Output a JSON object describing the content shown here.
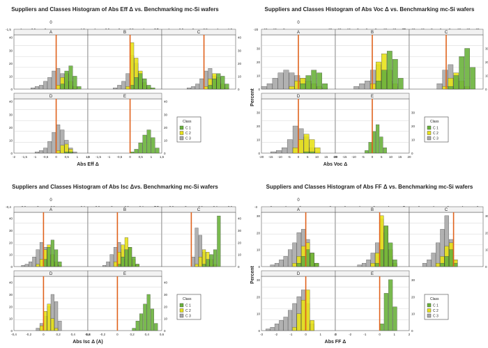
{
  "colors": {
    "c1": "#6ab23c",
    "c2": "#e8e21a",
    "c3": "#a8a8a8",
    "benchmark": "#e0621c",
    "grid": "#c8c8c8",
    "axis": "#555555"
  },
  "icons": {
    "legend_swatch": "square-swatch"
  },
  "chart_data": [
    {
      "type": "bar",
      "title": "Suppliers and Classes Histogram of Abs Eff Δ vs. Benchmarking mc-Si wafers",
      "xlabel": "Abs Eff Δ",
      "ylabel": "",
      "top_strip_label": "0",
      "xlim": [
        -2,
        1.5
      ],
      "ylim": [
        0,
        42
      ],
      "benchmark_x": 0,
      "grid": true,
      "legend": {
        "title": "Class",
        "entries": [
          "C 1",
          "C 2",
          "C 3"
        ],
        "position": "right"
      },
      "x_ticks_top": [
        "-1,5",
        "-1",
        "-0,5",
        "0",
        "0,5",
        "1",
        "1,5"
      ],
      "x_ticks_bottom": [
        "-2",
        "-1,5",
        "-1",
        "-0,5",
        "0",
        "0,5",
        "1",
        "1,5"
      ],
      "y_ticks": [
        "0",
        "10",
        "20",
        "30",
        "40"
      ],
      "panels": [
        {
          "label": "A",
          "bins": [
            -1.2,
            -1.0,
            -0.8,
            -0.6,
            -0.4,
            -0.2,
            0.0,
            0.2,
            0.4,
            0.6,
            0.8,
            1.0
          ],
          "c3": [
            1,
            2,
            3,
            6,
            9,
            14,
            16,
            12,
            6,
            3,
            1,
            0
          ],
          "c2": [
            0,
            0,
            0,
            0,
            0,
            0,
            3,
            9,
            12,
            6,
            2,
            0
          ],
          "c1": [
            0,
            0,
            0,
            0,
            0,
            0,
            0,
            4,
            14,
            18,
            10,
            2
          ]
        },
        {
          "label": "B",
          "bins": [
            -0.8,
            -0.6,
            -0.4,
            -0.2,
            0.0,
            0.2,
            0.4,
            0.6,
            0.8,
            1.0
          ],
          "c3": [
            1,
            3,
            6,
            12,
            26,
            20,
            9,
            3,
            1,
            0
          ],
          "c2": [
            0,
            0,
            0,
            2,
            36,
            24,
            14,
            5,
            1,
            0
          ],
          "c1": [
            0,
            0,
            0,
            0,
            3,
            9,
            12,
            8,
            3,
            1
          ]
        },
        {
          "label": "C",
          "bins": [
            -0.8,
            -0.6,
            -0.4,
            -0.2,
            0.0,
            0.2,
            0.4,
            0.6,
            0.8,
            1.0
          ],
          "c3": [
            1,
            2,
            4,
            8,
            14,
            16,
            10,
            5,
            2,
            0
          ],
          "c2": [
            0,
            0,
            0,
            0,
            2,
            8,
            12,
            9,
            4,
            1
          ],
          "c1": [
            0,
            0,
            0,
            0,
            0,
            3,
            8,
            12,
            10,
            4
          ]
        },
        {
          "label": "D",
          "bins": [
            -1.0,
            -0.8,
            -0.6,
            -0.4,
            -0.2,
            0.0,
            0.2,
            0.4,
            0.6,
            0.8
          ],
          "c3": [
            1,
            2,
            4,
            9,
            16,
            22,
            18,
            10,
            4,
            1
          ],
          "c2": [
            0,
            0,
            0,
            0,
            0,
            2,
            6,
            7,
            3,
            0
          ],
          "c1": [
            0,
            0,
            0,
            0,
            0,
            0,
            0,
            1,
            1,
            0
          ]
        },
        {
          "label": "E",
          "bins": [
            0.0,
            0.2,
            0.4,
            0.6,
            0.8,
            1.0,
            1.2
          ],
          "c3": [
            0,
            0,
            0,
            0,
            0,
            0,
            0
          ],
          "c2": [
            0,
            0,
            0,
            0,
            0,
            0,
            0
          ],
          "c1": [
            1,
            3,
            8,
            14,
            18,
            12,
            4
          ]
        }
      ]
    },
    {
      "type": "bar",
      "title": "Suppliers and Classes Histogram of Abs Voc Δ vs. Benchmarking mc-Si wafers",
      "xlabel": "Abs Voc Δ",
      "ylabel": "Percent",
      "top_strip_label": "0",
      "xlim": [
        -20,
        20
      ],
      "ylim": [
        0,
        40
      ],
      "benchmark_x": 0,
      "grid": true,
      "legend": {
        "title": "Class",
        "entries": [
          "C 1",
          "C 2",
          "C 3"
        ],
        "position": "right"
      },
      "x_ticks_top": [
        "-20",
        "-15",
        "-10",
        "-5",
        "0",
        "5",
        "10",
        "15",
        "20"
      ],
      "x_ticks_bottom": [
        "-20",
        "-15",
        "-10",
        "-5",
        "0",
        "5",
        "10",
        "15",
        "20"
      ],
      "y_ticks": [
        "0",
        "10",
        "20",
        "30"
      ],
      "panels": [
        {
          "label": "A",
          "bins": [
            -20,
            -17,
            -14,
            -11,
            -8,
            -5,
            -2,
            1,
            4,
            7,
            10,
            13
          ],
          "c3": [
            2,
            4,
            8,
            12,
            14,
            12,
            10,
            8,
            6,
            4,
            2,
            1
          ],
          "c2": [
            0,
            0,
            0,
            0,
            0,
            2,
            6,
            8,
            6,
            4,
            2,
            0
          ],
          "c1": [
            0,
            0,
            0,
            0,
            0,
            0,
            0,
            4,
            10,
            14,
            12,
            4
          ]
        },
        {
          "label": "B",
          "bins": [
            -10,
            -7,
            -4,
            -1,
            2,
            5,
            8,
            11,
            14
          ],
          "c3": [
            2,
            4,
            6,
            14,
            18,
            12,
            6,
            2,
            0
          ],
          "c2": [
            0,
            0,
            0,
            4,
            20,
            26,
            14,
            4,
            0
          ],
          "c1": [
            0,
            0,
            0,
            0,
            6,
            14,
            28,
            22,
            8
          ]
        },
        {
          "label": "C",
          "bins": [
            -5,
            -2,
            1,
            4,
            7,
            10,
            13
          ],
          "c3": [
            4,
            14,
            18,
            8,
            2,
            0,
            0
          ],
          "c2": [
            0,
            2,
            8,
            12,
            6,
            2,
            0
          ],
          "c1": [
            0,
            0,
            2,
            10,
            24,
            30,
            16
          ]
        },
        {
          "label": "D",
          "bins": [
            -15,
            -12,
            -9,
            -6,
            -3,
            0,
            3,
            6,
            9
          ],
          "c3": [
            1,
            2,
            4,
            10,
            20,
            18,
            12,
            4,
            1
          ],
          "c2": [
            0,
            0,
            0,
            0,
            4,
            10,
            14,
            10,
            4
          ],
          "c1": [
            0,
            0,
            0,
            0,
            0,
            0,
            1,
            1,
            0
          ]
        },
        {
          "label": "E",
          "bins": [
            -4,
            -2,
            0,
            2,
            4,
            6
          ],
          "c3": [
            0,
            0,
            0,
            0,
            0,
            0
          ],
          "c2": [
            0,
            0,
            0,
            0,
            0,
            0
          ],
          "c1": [
            2,
            8,
            16,
            21,
            12,
            4
          ]
        }
      ]
    },
    {
      "type": "bar",
      "title": "Suppliers and Classes Histogram of Abs Isc Δvs. Benchmarking mc-Si wafers",
      "xlabel": "Abs Isc Δ (A)",
      "ylabel": "",
      "top_strip_label": "0",
      "xlim": [
        -0.4,
        0.6
      ],
      "ylim": [
        0,
        45
      ],
      "benchmark_x": 0,
      "grid": true,
      "legend": {
        "title": "Class",
        "entries": [
          "C 1",
          "C 2",
          "C 3"
        ],
        "position": "right"
      },
      "x_ticks_top": [
        "-0,4",
        "-0,2",
        "0",
        "0,2",
        "0,4",
        "0,6"
      ],
      "x_ticks_bottom": [
        "-0,4",
        "-0,2",
        "0",
        "0,2",
        "0,4",
        "0,6"
      ],
      "y_ticks": [
        "0",
        "10",
        "20",
        "30",
        "40"
      ],
      "panels": [
        {
          "label": "A",
          "bins": [
            -0.3,
            -0.25,
            -0.2,
            -0.15,
            -0.1,
            -0.05,
            0.0,
            0.05,
            0.1,
            0.15,
            0.2
          ],
          "c3": [
            1,
            2,
            4,
            8,
            14,
            20,
            16,
            10,
            5,
            2,
            1
          ],
          "c2": [
            0,
            0,
            0,
            0,
            2,
            6,
            14,
            18,
            10,
            4,
            1
          ],
          "c1": [
            0,
            0,
            0,
            0,
            0,
            0,
            6,
            16,
            22,
            14,
            4
          ]
        },
        {
          "label": "B",
          "bins": [
            -0.2,
            -0.15,
            -0.1,
            -0.05,
            0.0,
            0.05,
            0.1,
            0.15,
            0.2,
            0.25
          ],
          "c3": [
            1,
            4,
            10,
            16,
            20,
            14,
            6,
            2,
            0,
            0
          ],
          "c2": [
            0,
            0,
            0,
            4,
            12,
            18,
            24,
            16,
            6,
            2
          ],
          "c1": [
            0,
            0,
            0,
            0,
            2,
            8,
            14,
            16,
            8,
            2
          ]
        },
        {
          "label": "C",
          "bins": [
            0.0,
            0.05,
            0.1,
            0.15,
            0.2,
            0.25,
            0.3,
            0.35
          ],
          "c3": [
            8,
            32,
            26,
            12,
            4,
            1,
            0,
            0
          ],
          "c2": [
            0,
            2,
            8,
            14,
            12,
            6,
            2,
            0
          ],
          "c1": [
            0,
            0,
            0,
            2,
            6,
            10,
            14,
            42
          ]
        },
        {
          "label": "D",
          "bins": [
            -0.1,
            -0.05,
            0.0,
            0.05,
            0.1,
            0.15,
            0.2
          ],
          "c3": [
            2,
            6,
            12,
            20,
            30,
            24,
            8
          ],
          "c2": [
            0,
            4,
            16,
            22,
            10,
            2,
            0
          ],
          "c1": [
            0,
            0,
            0,
            0,
            0,
            0,
            0
          ]
        },
        {
          "label": "E",
          "bins": [
            0.2,
            0.25,
            0.3,
            0.35,
            0.4,
            0.45,
            0.5
          ],
          "c3": [
            0,
            0,
            0,
            0,
            0,
            0,
            0
          ],
          "c2": [
            0,
            0,
            0,
            0,
            0,
            0,
            0
          ],
          "c1": [
            2,
            8,
            14,
            22,
            30,
            18,
            6
          ]
        }
      ]
    },
    {
      "type": "bar",
      "title": "Suppliers and Classes Histogram of Abs FF Δ vs. Benchmarking mc-Si wafers",
      "xlabel": "Abs FF Δ",
      "ylabel": "Percent",
      "top_strip_label": "0",
      "xlim": [
        -3,
        2
      ],
      "ylim": [
        0,
        32
      ],
      "benchmark_x": 0,
      "grid": true,
      "legend": {
        "title": "Class",
        "entries": [
          "C 1",
          "C 2",
          "C 3"
        ],
        "position": "right"
      },
      "x_ticks_top": [
        "-3",
        "-2",
        "-1",
        "0",
        "1",
        "2"
      ],
      "x_ticks_bottom": [
        "-3",
        "-2",
        "-1",
        "0",
        "1",
        "2"
      ],
      "y_ticks": [
        "0",
        "10",
        "20",
        "30"
      ],
      "panels": [
        {
          "label": "A",
          "bins": [
            -2.4,
            -2.1,
            -1.8,
            -1.5,
            -1.2,
            -0.9,
            -0.6,
            -0.3,
            0.0,
            0.3,
            0.6
          ],
          "c3": [
            1,
            2,
            4,
            6,
            10,
            14,
            20,
            22,
            16,
            8,
            2
          ],
          "c2": [
            0,
            0,
            0,
            0,
            0,
            2,
            6,
            12,
            14,
            8,
            2
          ],
          "c1": [
            0,
            0,
            0,
            0,
            0,
            0,
            2,
            6,
            10,
            8,
            2
          ]
        },
        {
          "label": "B",
          "bins": [
            -1.5,
            -1.2,
            -0.9,
            -0.6,
            -0.3,
            0.0,
            0.3,
            0.6,
            0.9
          ],
          "c3": [
            1,
            2,
            4,
            8,
            14,
            28,
            20,
            6,
            1
          ],
          "c2": [
            0,
            0,
            0,
            2,
            8,
            30,
            24,
            10,
            2
          ],
          "c1": [
            0,
            0,
            0,
            0,
            2,
            10,
            24,
            14,
            4
          ]
        },
        {
          "label": "C",
          "bins": [
            -2.1,
            -1.8,
            -1.5,
            -1.2,
            -0.9,
            -0.6,
            -0.3,
            0.0
          ],
          "c3": [
            2,
            4,
            8,
            14,
            22,
            30,
            16,
            4
          ],
          "c2": [
            0,
            0,
            0,
            2,
            6,
            12,
            14,
            4
          ],
          "c1": [
            0,
            0,
            0,
            0,
            2,
            6,
            10,
            2
          ]
        },
        {
          "label": "D",
          "bins": [
            -2.7,
            -2.4,
            -2.1,
            -1.8,
            -1.5,
            -1.2,
            -0.9,
            -0.6,
            -0.3,
            0.0,
            0.3
          ],
          "c3": [
            1,
            2,
            4,
            6,
            8,
            12,
            16,
            20,
            24,
            16,
            4
          ],
          "c2": [
            0,
            0,
            0,
            0,
            0,
            0,
            2,
            10,
            18,
            24,
            6
          ],
          "c1": [
            0,
            0,
            0,
            0,
            0,
            0,
            0,
            0,
            0,
            0,
            0
          ]
        },
        {
          "label": "E",
          "bins": [
            0.0,
            0.3,
            0.6,
            0.9
          ],
          "c3": [
            0,
            0,
            0,
            0
          ],
          "c2": [
            0,
            0,
            0,
            0
          ],
          "c1": [
            4,
            22,
            30,
            14
          ]
        }
      ]
    }
  ]
}
